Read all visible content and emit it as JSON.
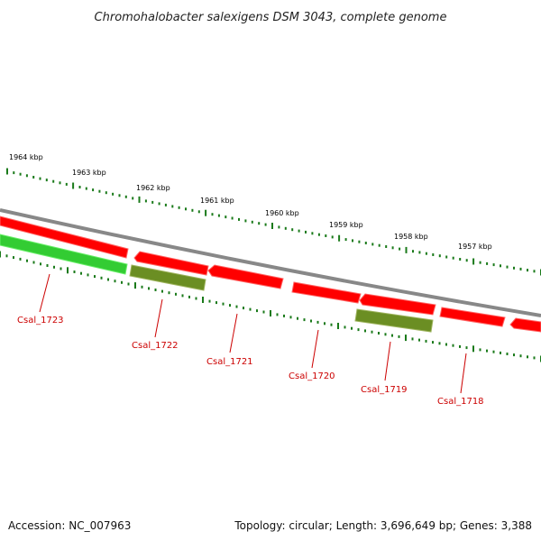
{
  "title": "Chromohalobacter salexigens DSM 3043, complete genome",
  "footer": {
    "accession": "Accession: NC_007963",
    "summary": "Topology: circular; Length: 3,696,649 bp; Genes: 3,388"
  },
  "colors": {
    "forward_gene": "#ff0000",
    "reverse_gene": "#33cc33",
    "olive_gene": "#6b8e23",
    "backbone": "#888888",
    "ticks": "#1a7a1a",
    "label": "#cc0000"
  },
  "kbp_labels": [
    "1964 kbp",
    "1963 kbp",
    "1962 kbp",
    "1961 kbp",
    "1960 kbp",
    "1959 kbp",
    "1958 kbp",
    "1957 kbp"
  ],
  "genes": [
    {
      "label": "Csal_1723",
      "strand": "reverse",
      "color": "green"
    },
    {
      "label": "Csal_1722",
      "strand": "reverse",
      "color": "olive"
    },
    {
      "label": "Csal_1721",
      "strand": "forward",
      "color": "red"
    },
    {
      "label": "Csal_1720",
      "strand": "forward",
      "color": "red"
    },
    {
      "label": "Csal_1719",
      "strand": "reverse",
      "color": "olive"
    },
    {
      "label": "Csal_1718",
      "strand": "forward",
      "color": "red"
    }
  ]
}
